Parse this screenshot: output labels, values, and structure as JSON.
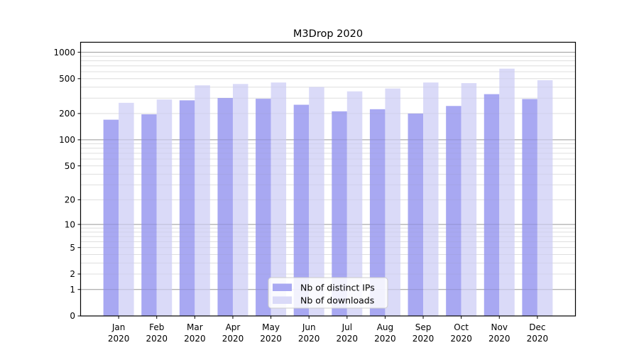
{
  "chart_data": {
    "type": "bar",
    "title": "M3Drop 2020",
    "x_categories": [
      "Jan",
      "Feb",
      "Mar",
      "Apr",
      "May",
      "Jun",
      "Jul",
      "Aug",
      "Sep",
      "Oct",
      "Nov",
      "Dec"
    ],
    "x_year": "2020",
    "xlabel": "",
    "ylabel": "",
    "y_scale": "log1p",
    "y_ticks": [
      0,
      1,
      2,
      5,
      10,
      20,
      50,
      100,
      200,
      500,
      1000
    ],
    "ylim": [
      0,
      1300
    ],
    "grid": true,
    "legend_position": "lower center",
    "series": [
      {
        "name": "Nb of distinct IPs",
        "color": "#a8a8f2",
        "values": [
          170,
          196,
          283,
          301,
          295,
          252,
          212,
          224,
          200,
          244,
          333,
          293
        ]
      },
      {
        "name": "Nb of downloads",
        "color": "#dadaf8",
        "values": [
          265,
          289,
          420,
          435,
          452,
          402,
          358,
          386,
          452,
          445,
          650,
          480
        ]
      }
    ],
    "colors": {
      "grid_major": "#b0b0b0",
      "grid_minor": "#e9e9e9",
      "axis_frame": "#000000",
      "background": "#ffffff"
    }
  }
}
